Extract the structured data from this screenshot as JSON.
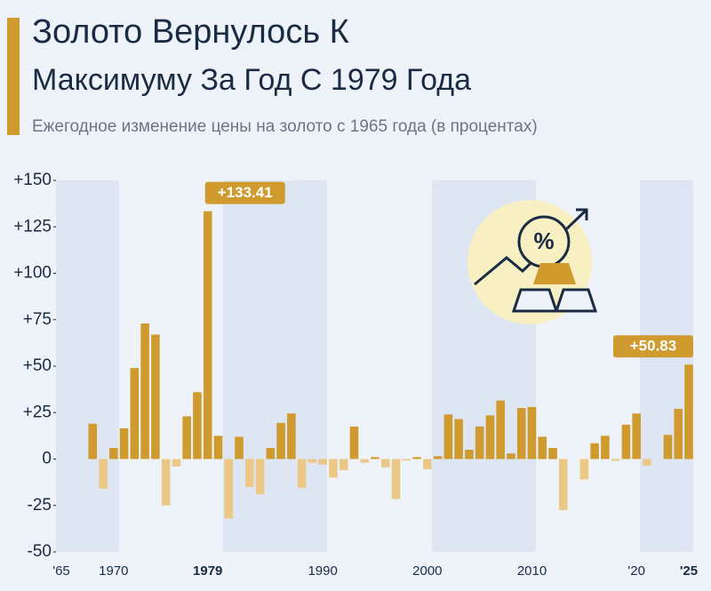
{
  "chart_data": {
    "type": "bar",
    "title_lines": [
      "Золото Вернулось К",
      "Максимуму За Год С 1979 Года"
    ],
    "subtitle": "Ежегодное изменение цены на золото с 1965 года (в процентах)",
    "categories": [
      "'65",
      null,
      null,
      null,
      null,
      "1970",
      null,
      null,
      null,
      null,
      null,
      null,
      null,
      null,
      "1979",
      null,
      null,
      null,
      null,
      null,
      null,
      null,
      null,
      null,
      null,
      "1990",
      null,
      null,
      null,
      null,
      null,
      null,
      null,
      null,
      null,
      "2000",
      null,
      null,
      null,
      null,
      null,
      null,
      null,
      null,
      null,
      "2010",
      null,
      null,
      null,
      null,
      null,
      null,
      null,
      null,
      null,
      "'20",
      null,
      null,
      null,
      null,
      "'25"
    ],
    "values": [
      0,
      0,
      0,
      19,
      -16,
      6,
      16.5,
      49,
      73,
      67,
      -25,
      -4,
      23,
      36,
      133.41,
      12.5,
      -32,
      12,
      -15,
      -19,
      6,
      19.5,
      24.5,
      -15.5,
      -2,
      -3,
      -10,
      -6,
      17.5,
      -2,
      1,
      -4.5,
      -21.5,
      -0.8,
      1,
      -5.5,
      1.5,
      24,
      21.5,
      5,
      17.5,
      23.5,
      31.5,
      3,
      27.5,
      28,
      12,
      6,
      -27.5,
      0,
      -11,
      8.5,
      12.5,
      -1,
      18.5,
      24.5,
      -3.5,
      0,
      13,
      27,
      50.83
    ],
    "value_labels": [
      null,
      null,
      null,
      null,
      null,
      null,
      null,
      null,
      null,
      null,
      null,
      null,
      null,
      null,
      "+133.41",
      null,
      null,
      null,
      null,
      null,
      null,
      null,
      null,
      null,
      null,
      null,
      null,
      null,
      null,
      null,
      null,
      null,
      null,
      null,
      null,
      null,
      null,
      null,
      null,
      null,
      null,
      null,
      null,
      null,
      null,
      null,
      null,
      null,
      null,
      null,
      null,
      null,
      null,
      null,
      null,
      null,
      null,
      null,
      null,
      null,
      "+50.83"
    ],
    "color": "#cf9a2e",
    "negative_color": "#ecc887",
    "ylim": [
      -50,
      150
    ],
    "yticks": [
      {
        "value": 150,
        "label": "+150"
      },
      {
        "value": 125,
        "label": "+125"
      },
      {
        "value": 100,
        "label": "+100"
      },
      {
        "value": 75,
        "label": "+75"
      },
      {
        "value": 50,
        "label": "+50"
      },
      {
        "value": 25,
        "label": "+25"
      },
      0,
      -25,
      -50
    ]
  }
}
